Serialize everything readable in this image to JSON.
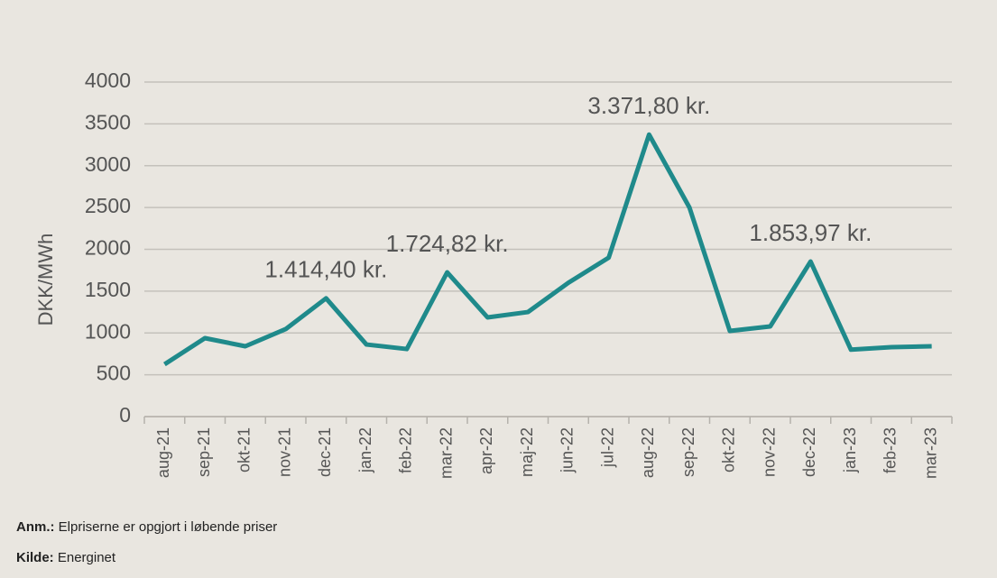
{
  "chart_data": {
    "type": "line",
    "y_label": "DKK/MWh",
    "categories": [
      "aug-21",
      "sep-21",
      "okt-21",
      "nov-21",
      "dec-21",
      "jan-22",
      "feb-22",
      "mar-22",
      "apr-22",
      "maj-22",
      "jun-22",
      "jul-22",
      "aug-22",
      "sep-22",
      "okt-22",
      "nov-22",
      "dec-22",
      "jan-23",
      "feb-23",
      "mar-23"
    ],
    "series": [
      {
        "name": "DKK/MWh",
        "color": "#1f8a8b",
        "values": [
          625,
          938,
          841,
          1046,
          1414.4,
          862,
          808,
          1724.82,
          1186,
          1250,
          1600,
          1900,
          3371.8,
          2500,
          1024,
          1078,
          1853.97,
          800,
          830,
          841
        ],
        "value_labels": [
          null,
          null,
          null,
          null,
          "1.414,40 kr.",
          null,
          null,
          "1.724,82 kr.",
          null,
          null,
          null,
          null,
          "3.371,80 kr.",
          null,
          null,
          null,
          "1.853,97 kr.",
          null,
          null,
          null
        ]
      }
    ],
    "ylim": [
      0,
      4000
    ],
    "yticks": [
      0,
      500,
      1000,
      1500,
      2000,
      2500,
      3000,
      3500,
      4000
    ],
    "grid": true
  },
  "footer": {
    "note_label": "Anm.:",
    "note": "Elpriserne er opgjort i løbende priser",
    "source_label": "Kilde:",
    "source": "Energinet"
  }
}
